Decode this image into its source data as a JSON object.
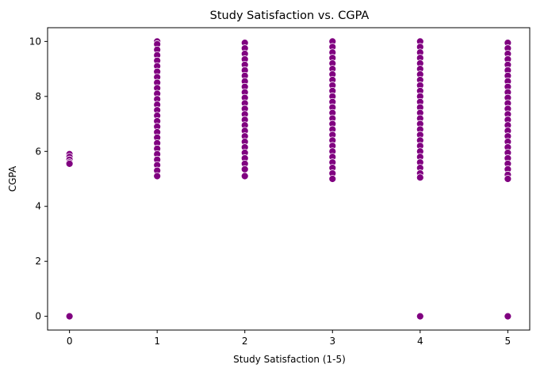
{
  "chart_data": {
    "type": "scatter",
    "title": "Study Satisfaction vs. CGPA",
    "xlabel": "Study Satisfaction (1-5)",
    "ylabel": "CGPA",
    "xlim": [
      -0.25,
      5.25
    ],
    "ylim": [
      -0.5,
      10.5
    ],
    "grid": false,
    "x_ticks": [
      "0",
      "1",
      "2",
      "3",
      "4",
      "5"
    ],
    "y_ticks": [
      "0",
      "2",
      "4",
      "6",
      "8",
      "10"
    ],
    "marker_color": "#800080",
    "marker_edge_color": "#ffffff",
    "points": [
      {
        "x": 0,
        "y": 5.9
      },
      {
        "x": 0,
        "y": 5.8
      },
      {
        "x": 0,
        "y": 5.7
      },
      {
        "x": 0,
        "y": 5.6
      },
      {
        "x": 0,
        "y": 5.55
      },
      {
        "x": 0,
        "y": 0
      },
      {
        "x": 1,
        "y": 10.0
      },
      {
        "x": 1,
        "y": 9.9
      },
      {
        "x": 1,
        "y": 9.7
      },
      {
        "x": 1,
        "y": 9.5
      },
      {
        "x": 1,
        "y": 9.3
      },
      {
        "x": 1,
        "y": 9.1
      },
      {
        "x": 1,
        "y": 8.9
      },
      {
        "x": 1,
        "y": 8.7
      },
      {
        "x": 1,
        "y": 8.5
      },
      {
        "x": 1,
        "y": 8.3
      },
      {
        "x": 1,
        "y": 8.1
      },
      {
        "x": 1,
        "y": 7.9
      },
      {
        "x": 1,
        "y": 7.7
      },
      {
        "x": 1,
        "y": 7.5
      },
      {
        "x": 1,
        "y": 7.3
      },
      {
        "x": 1,
        "y": 7.1
      },
      {
        "x": 1,
        "y": 6.9
      },
      {
        "x": 1,
        "y": 6.7
      },
      {
        "x": 1,
        "y": 6.5
      },
      {
        "x": 1,
        "y": 6.3
      },
      {
        "x": 1,
        "y": 6.1
      },
      {
        "x": 1,
        "y": 5.9
      },
      {
        "x": 1,
        "y": 5.7
      },
      {
        "x": 1,
        "y": 5.5
      },
      {
        "x": 1,
        "y": 5.3
      },
      {
        "x": 1,
        "y": 5.1
      },
      {
        "x": 2,
        "y": 9.95
      },
      {
        "x": 2,
        "y": 9.75
      },
      {
        "x": 2,
        "y": 9.55
      },
      {
        "x": 2,
        "y": 9.35
      },
      {
        "x": 2,
        "y": 9.15
      },
      {
        "x": 2,
        "y": 8.95
      },
      {
        "x": 2,
        "y": 8.75
      },
      {
        "x": 2,
        "y": 8.55
      },
      {
        "x": 2,
        "y": 8.35
      },
      {
        "x": 2,
        "y": 8.15
      },
      {
        "x": 2,
        "y": 7.95
      },
      {
        "x": 2,
        "y": 7.75
      },
      {
        "x": 2,
        "y": 7.55
      },
      {
        "x": 2,
        "y": 7.35
      },
      {
        "x": 2,
        "y": 7.15
      },
      {
        "x": 2,
        "y": 6.95
      },
      {
        "x": 2,
        "y": 6.75
      },
      {
        "x": 2,
        "y": 6.55
      },
      {
        "x": 2,
        "y": 6.35
      },
      {
        "x": 2,
        "y": 6.15
      },
      {
        "x": 2,
        "y": 5.95
      },
      {
        "x": 2,
        "y": 5.75
      },
      {
        "x": 2,
        "y": 5.55
      },
      {
        "x": 2,
        "y": 5.35
      },
      {
        "x": 2,
        "y": 5.1
      },
      {
        "x": 3,
        "y": 10.0
      },
      {
        "x": 3,
        "y": 9.8
      },
      {
        "x": 3,
        "y": 9.6
      },
      {
        "x": 3,
        "y": 9.4
      },
      {
        "x": 3,
        "y": 9.2
      },
      {
        "x": 3,
        "y": 9.0
      },
      {
        "x": 3,
        "y": 8.8
      },
      {
        "x": 3,
        "y": 8.6
      },
      {
        "x": 3,
        "y": 8.4
      },
      {
        "x": 3,
        "y": 8.2
      },
      {
        "x": 3,
        "y": 8.0
      },
      {
        "x": 3,
        "y": 7.8
      },
      {
        "x": 3,
        "y": 7.6
      },
      {
        "x": 3,
        "y": 7.4
      },
      {
        "x": 3,
        "y": 7.2
      },
      {
        "x": 3,
        "y": 7.0
      },
      {
        "x": 3,
        "y": 6.8
      },
      {
        "x": 3,
        "y": 6.6
      },
      {
        "x": 3,
        "y": 6.4
      },
      {
        "x": 3,
        "y": 6.2
      },
      {
        "x": 3,
        "y": 6.0
      },
      {
        "x": 3,
        "y": 5.8
      },
      {
        "x": 3,
        "y": 5.6
      },
      {
        "x": 3,
        "y": 5.4
      },
      {
        "x": 3,
        "y": 5.2
      },
      {
        "x": 3,
        "y": 5.0
      },
      {
        "x": 4,
        "y": 10.0
      },
      {
        "x": 4,
        "y": 9.8
      },
      {
        "x": 4,
        "y": 9.6
      },
      {
        "x": 4,
        "y": 9.4
      },
      {
        "x": 4,
        "y": 9.2
      },
      {
        "x": 4,
        "y": 9.0
      },
      {
        "x": 4,
        "y": 8.8
      },
      {
        "x": 4,
        "y": 8.6
      },
      {
        "x": 4,
        "y": 8.4
      },
      {
        "x": 4,
        "y": 8.2
      },
      {
        "x": 4,
        "y": 8.0
      },
      {
        "x": 4,
        "y": 7.8
      },
      {
        "x": 4,
        "y": 7.6
      },
      {
        "x": 4,
        "y": 7.4
      },
      {
        "x": 4,
        "y": 7.2
      },
      {
        "x": 4,
        "y": 7.0
      },
      {
        "x": 4,
        "y": 6.8
      },
      {
        "x": 4,
        "y": 6.6
      },
      {
        "x": 4,
        "y": 6.4
      },
      {
        "x": 4,
        "y": 6.2
      },
      {
        "x": 4,
        "y": 6.0
      },
      {
        "x": 4,
        "y": 5.8
      },
      {
        "x": 4,
        "y": 5.6
      },
      {
        "x": 4,
        "y": 5.4
      },
      {
        "x": 4,
        "y": 5.2
      },
      {
        "x": 4,
        "y": 5.05
      },
      {
        "x": 4,
        "y": 0
      },
      {
        "x": 5,
        "y": 9.95
      },
      {
        "x": 5,
        "y": 9.75
      },
      {
        "x": 5,
        "y": 9.55
      },
      {
        "x": 5,
        "y": 9.35
      },
      {
        "x": 5,
        "y": 9.15
      },
      {
        "x": 5,
        "y": 8.95
      },
      {
        "x": 5,
        "y": 8.75
      },
      {
        "x": 5,
        "y": 8.55
      },
      {
        "x": 5,
        "y": 8.35
      },
      {
        "x": 5,
        "y": 8.15
      },
      {
        "x": 5,
        "y": 7.95
      },
      {
        "x": 5,
        "y": 7.75
      },
      {
        "x": 5,
        "y": 7.55
      },
      {
        "x": 5,
        "y": 7.35
      },
      {
        "x": 5,
        "y": 7.15
      },
      {
        "x": 5,
        "y": 6.95
      },
      {
        "x": 5,
        "y": 6.75
      },
      {
        "x": 5,
        "y": 6.55
      },
      {
        "x": 5,
        "y": 6.35
      },
      {
        "x": 5,
        "y": 6.15
      },
      {
        "x": 5,
        "y": 5.95
      },
      {
        "x": 5,
        "y": 5.75
      },
      {
        "x": 5,
        "y": 5.55
      },
      {
        "x": 5,
        "y": 5.35
      },
      {
        "x": 5,
        "y": 5.15
      },
      {
        "x": 5,
        "y": 5.0
      },
      {
        "x": 5,
        "y": 0
      }
    ]
  }
}
